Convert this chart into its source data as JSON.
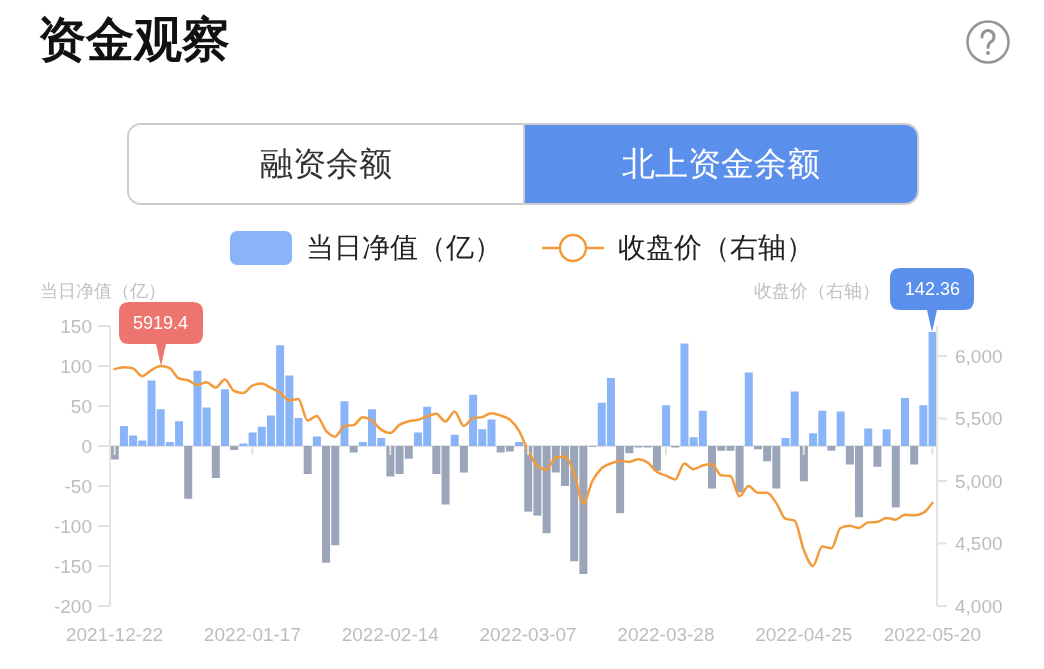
{
  "chart_data": {
    "type": "bar",
    "title": "资金观察",
    "ylabel": "当日净值（亿）",
    "y2label": "收盘价（右轴）",
    "annotations": [
      "融资余额",
      "北上资金余额",
      "5919.4",
      {
        "text": "142.36",
        "x": "2022-05-20",
        "y": 142.36
      }
    ],
    "categories": [
      "2021-12-22",
      null,
      null,
      null,
      null,
      null,
      null,
      null,
      null,
      null,
      null,
      null,
      null,
      null,
      null,
      "2022-01-17",
      null,
      null,
      null,
      null,
      null,
      null,
      null,
      null,
      null,
      null,
      null,
      null,
      null,
      null,
      "2022-02-14",
      null,
      null,
      null,
      null,
      null,
      null,
      null,
      null,
      null,
      null,
      null,
      null,
      null,
      null,
      "2022-03-07",
      null,
      null,
      null,
      null,
      null,
      null,
      null,
      null,
      null,
      null,
      null,
      null,
      null,
      null,
      "2022-03-28",
      null,
      null,
      null,
      null,
      null,
      null,
      null,
      null,
      null,
      null,
      null,
      null,
      null,
      null,
      "2022-04-25",
      null,
      null,
      null,
      null,
      null,
      null,
      null,
      null,
      null,
      null,
      null,
      null,
      null,
      "2022-05-20"
    ],
    "series": [
      {
        "name": "当日净值（亿）",
        "color": "#8ab4f8",
        "values": [
          -17,
          25,
          13,
          7,
          82,
          46,
          5,
          31,
          -66,
          94,
          48,
          -40,
          71,
          -5,
          3,
          17,
          24,
          38,
          126,
          88,
          35,
          -35,
          12,
          -146,
          -124,
          56,
          -8,
          5,
          46,
          10,
          -38,
          -35,
          -16,
          17,
          49,
          -35,
          -73,
          14,
          -33,
          64,
          21,
          33,
          -8,
          -7,
          5,
          -82,
          -87,
          -109,
          -33,
          -50,
          -144,
          -160,
          -1,
          54,
          85,
          -84,
          -9,
          -2,
          -2,
          -31,
          51,
          -2,
          128,
          11,
          44,
          -53,
          -6,
          -6,
          -58,
          92,
          -4,
          -19,
          -53,
          10,
          68,
          -44,
          16,
          44,
          -6,
          43,
          -23,
          -89,
          22,
          -26,
          21,
          -77,
          60,
          -23,
          51,
          142.36
        ],
        "colors": [
          "#9aa5b9",
          "#8ab4f8",
          "#8ab4f8",
          "#8ab4f8",
          "#8ab4f8",
          "#8ab4f8",
          "#8ab4f8",
          "#8ab4f8",
          "#9aa5b9",
          "#8ab4f8",
          "#8ab4f8",
          "#9aa5b9",
          "#8ab4f8",
          "#9aa5b9",
          "#8ab4f8",
          "#8ab4f8",
          "#8ab4f8",
          "#8ab4f8",
          "#8ab4f8",
          "#8ab4f8",
          "#8ab4f8",
          "#9aa5b9",
          "#8ab4f8",
          "#9aa5b9",
          "#9aa5b9",
          "#8ab4f8",
          "#9aa5b9",
          "#8ab4f8",
          "#8ab4f8",
          "#8ab4f8",
          "#9aa5b9",
          "#9aa5b9",
          "#9aa5b9",
          "#8ab4f8",
          "#8ab4f8",
          "#9aa5b9",
          "#9aa5b9",
          "#8ab4f8",
          "#9aa5b9",
          "#8ab4f8",
          "#8ab4f8",
          "#8ab4f8",
          "#9aa5b9",
          "#9aa5b9",
          "#8ab4f8",
          "#9aa5b9",
          "#9aa5b9",
          "#9aa5b9",
          "#9aa5b9",
          "#9aa5b9",
          "#9aa5b9",
          "#9aa5b9",
          "#9aa5b9",
          "#8ab4f8",
          "#8ab4f8",
          "#9aa5b9",
          "#9aa5b9",
          "#9aa5b9",
          "#9aa5b9",
          "#9aa5b9",
          "#8ab4f8",
          "#9aa5b9",
          "#8ab4f8",
          "#8ab4f8",
          "#8ab4f8",
          "#9aa5b9",
          "#9aa5b9",
          "#9aa5b9",
          "#9aa5b9",
          "#8ab4f8",
          "#9aa5b9",
          "#9aa5b9",
          "#9aa5b9",
          "#8ab4f8",
          "#8ab4f8",
          "#9aa5b9",
          "#8ab4f8",
          "#8ab4f8",
          "#9aa5b9",
          "#8ab4f8",
          "#9aa5b9",
          "#9aa5b9",
          "#8ab4f8",
          "#9aa5b9",
          "#8ab4f8",
          "#9aa5b9",
          "#8ab4f8",
          "#9aa5b9",
          "#8ab4f8",
          "#8ab4f8"
        ]
      },
      {
        "name": "收盘价（右轴）",
        "type": "line",
        "axis": "y2",
        "color": "#f39b3b",
        "values": [
          5895,
          5911,
          5901,
          5839,
          5887,
          5919.4,
          5903,
          5820,
          5806,
          5769,
          5790,
          5747,
          5812,
          5720,
          5704,
          5763,
          5780,
          5745,
          5707,
          5645,
          5656,
          5484,
          5521,
          5403,
          5355,
          5440,
          5447,
          5511,
          5484,
          5411,
          5384,
          5449,
          5478,
          5489,
          5516,
          5538,
          5476,
          5556,
          5441,
          5503,
          5511,
          5543,
          5524,
          5492,
          5403,
          5242,
          5121,
          5089,
          5188,
          5194,
          5067,
          4820,
          5000,
          5102,
          5140,
          5161,
          5153,
          5175,
          5148,
          5074,
          5043,
          5013,
          5140,
          5094,
          5124,
          5134,
          5046,
          5040,
          4879,
          4960,
          4906,
          4906,
          4825,
          4699,
          4683,
          4449,
          4320,
          4476,
          4462,
          4624,
          4642,
          4624,
          4669,
          4672,
          4704,
          4691,
          4731,
          4726,
          4745,
          4825
        ]
      }
    ],
    "ylim": [
      -200,
      150
    ],
    "yticks": [
      -200,
      -150,
      -100,
      -50,
      0,
      50,
      100,
      150
    ],
    "y2lim": [
      4000,
      6240
    ],
    "y2ticks": [
      {
        "value": 4000,
        "label": "4,000"
      },
      {
        "value": 4500,
        "label": "4,500"
      },
      {
        "value": 5000,
        "label": "5,000"
      },
      {
        "value": 5500,
        "label": "5,500"
      },
      {
        "value": 6000,
        "label": "6,000"
      }
    ],
    "legend": "top",
    "marker": "none"
  }
}
